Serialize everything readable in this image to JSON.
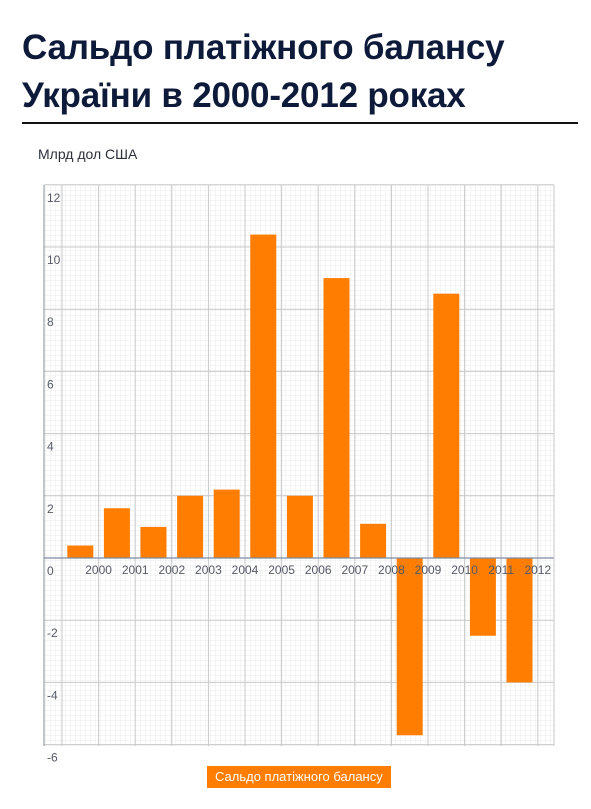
{
  "chart_data": {
    "type": "bar",
    "title": "Сальдо платіжного балансу України в 2000-2012 роках",
    "ylabel": "Млрд дол США",
    "categories": [
      "2000",
      "2001",
      "2002",
      "2003",
      "2004",
      "2005",
      "2006",
      "2007",
      "2008",
      "2009",
      "2010",
      "2011",
      "2012"
    ],
    "series": [
      {
        "name": "Сальдо платіжного балансу",
        "values": [
          0.4,
          1.6,
          1.0,
          2.0,
          2.2,
          10.4,
          2.0,
          9.0,
          1.1,
          -5.7,
          8.5,
          -2.5,
          -4.0
        ]
      }
    ],
    "ylim": [
      -6,
      12
    ],
    "yticks": [
      "12",
      "10",
      "8",
      "6",
      "4",
      "2",
      "0",
      "-2",
      "-4",
      "-6"
    ],
    "grid": true,
    "legend_position": "bottom",
    "bar_color": "#ff7d00"
  },
  "header": {
    "title": "Сальдо платіжного балансу України в 2000-2012 роках",
    "unit": "Млрд дол США"
  },
  "legend": {
    "label": "Сальдо платіжного балансу"
  }
}
